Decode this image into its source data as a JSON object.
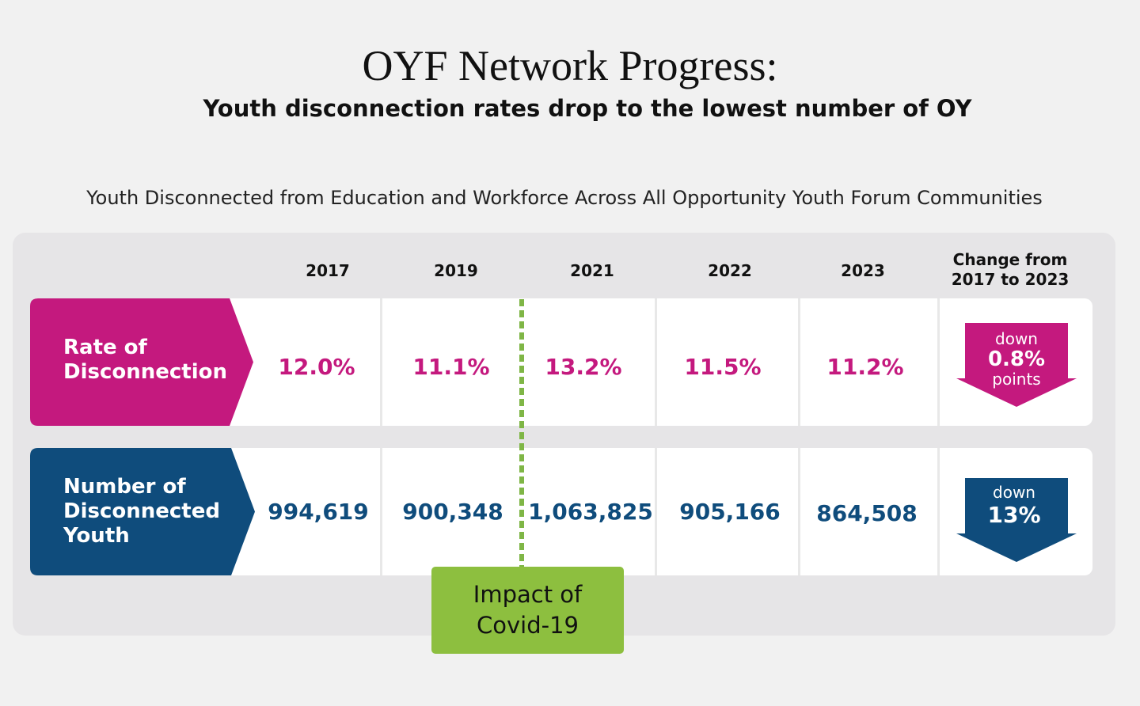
{
  "title": "OYF Network Progress:",
  "subtitle": "Youth disconnection rates drop to the lowest number of OY",
  "chart_data": {
    "type": "table",
    "title": "Youth Disconnected from Education and Workforce Across All Opportunity Youth Forum Communities",
    "columns": [
      "2017",
      "2019",
      "2021",
      "2022",
      "2023"
    ],
    "change_header": "Change from\n2017 to 2023",
    "rows": [
      {
        "label": "Rate of\nDisconnection",
        "values": [
          "12.0%",
          "11.1%",
          "13.2%",
          "11.5%",
          "11.2%"
        ],
        "change": {
          "direction": "down",
          "value": "0.8%",
          "unit": "points"
        },
        "color": "#c4197e"
      },
      {
        "label": "Number of\nDisconnected\nYouth",
        "values": [
          "994,619",
          "900,348",
          "1,063,825",
          "905,166",
          "864,508"
        ],
        "change": {
          "direction": "down",
          "value": "13%",
          "unit": ""
        },
        "color": "#0f4c7c"
      }
    ],
    "annotation": "Impact of\nCovid-19",
    "annotation_color": "#8dbf3f"
  }
}
